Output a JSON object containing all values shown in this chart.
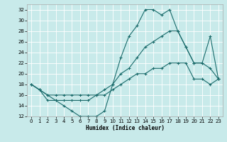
{
  "xlabel": "Humidex (Indice chaleur)",
  "xlim": [
    -0.5,
    23.5
  ],
  "ylim": [
    12,
    33
  ],
  "yticks": [
    12,
    14,
    16,
    18,
    20,
    22,
    24,
    26,
    28,
    30,
    32
  ],
  "xticks": [
    0,
    1,
    2,
    3,
    4,
    5,
    6,
    7,
    8,
    9,
    10,
    11,
    12,
    13,
    14,
    15,
    16,
    17,
    18,
    19,
    20,
    21,
    22,
    23
  ],
  "bg_color": "#c8eaea",
  "line_color": "#1a6b6b",
  "line1_x": [
    0,
    1,
    2,
    3,
    4,
    5,
    6,
    7,
    8,
    9,
    10,
    11,
    12,
    13,
    14,
    15,
    16,
    17,
    18,
    19,
    20,
    21,
    22,
    23
  ],
  "line1_y": [
    18,
    17,
    15,
    15,
    14,
    13,
    12,
    12,
    12,
    13,
    18,
    23,
    27,
    29,
    32,
    32,
    31,
    32,
    28,
    25,
    22,
    22,
    21,
    19
  ],
  "line2_x": [
    0,
    1,
    2,
    3,
    4,
    5,
    6,
    7,
    8,
    9,
    10,
    11,
    12,
    13,
    14,
    15,
    16,
    17,
    18,
    19,
    20,
    21,
    22,
    23
  ],
  "line2_y": [
    18,
    17,
    16,
    16,
    16,
    16,
    16,
    16,
    16,
    16,
    17,
    18,
    19,
    20,
    20,
    21,
    21,
    22,
    22,
    22,
    19,
    19,
    18,
    19
  ],
  "line3_x": [
    0,
    1,
    2,
    3,
    4,
    5,
    6,
    7,
    8,
    9,
    10,
    11,
    12,
    13,
    14,
    15,
    16,
    17,
    18,
    19,
    20,
    21,
    22,
    23
  ],
  "line3_y": [
    18,
    17,
    16,
    15,
    15,
    15,
    15,
    15,
    16,
    17,
    18,
    20,
    21,
    23,
    25,
    26,
    27,
    28,
    28,
    25,
    22,
    22,
    27,
    19
  ]
}
